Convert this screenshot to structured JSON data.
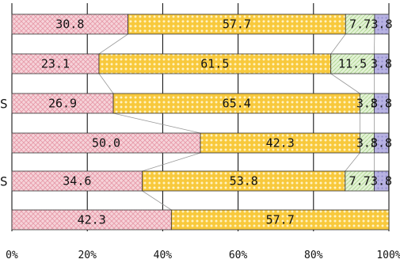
{
  "chart_data": {
    "type": "bar",
    "orientation": "horizontal",
    "stacked": true,
    "percent": true,
    "title": "",
    "xlabel": "",
    "ylabel": "",
    "xlim": [
      0,
      100
    ],
    "grid": true,
    "legend": "none",
    "row_labels_visible": [
      "",
      "",
      "S",
      "",
      "S",
      ""
    ],
    "x_ticks": [
      "0%",
      "20%",
      "40%",
      "60%",
      "80%",
      "100%"
    ],
    "series": [
      {
        "name": "",
        "color": "#f2c4cc",
        "pattern": "pink-cross",
        "values": [
          30.8,
          23.1,
          26.9,
          50.0,
          34.6,
          42.3
        ]
      },
      {
        "name": "",
        "color": "#f7c842",
        "pattern": "yellow-dots",
        "values": [
          57.7,
          61.5,
          65.4,
          42.3,
          53.8,
          57.7
        ]
      },
      {
        "name": "",
        "color": "#d7ecc4",
        "pattern": "green-lines",
        "values": [
          7.7,
          11.5,
          3.8,
          3.8,
          7.7,
          0
        ]
      },
      {
        "name": "",
        "color": "#b6b3df",
        "pattern": "purple-dots",
        "values": [
          3.8,
          3.8,
          3.8,
          3.8,
          3.8,
          0
        ]
      }
    ],
    "data_labels": [
      [
        "30.8",
        "57.7",
        "7.7",
        "3.8"
      ],
      [
        "23.1",
        "61.5",
        "11.5",
        "3.8"
      ],
      [
        "26.9",
        "65.4",
        "3.8",
        "3.8"
      ],
      [
        "50.0",
        "42.3",
        "3.8",
        "3.8"
      ],
      [
        "34.6",
        "53.8",
        "7.7",
        "3.8"
      ],
      [
        "42.3",
        "57.7",
        "",
        ""
      ]
    ]
  }
}
